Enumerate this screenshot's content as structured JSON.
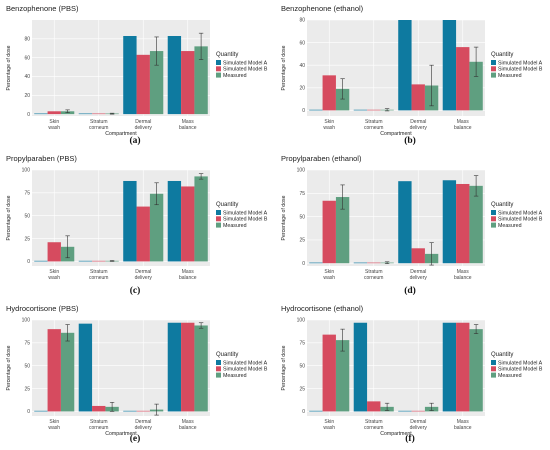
{
  "colors": {
    "model_a": "#0e7aa0",
    "model_b": "#d64b5f",
    "measured": "#5f9f80",
    "panel_bg": "#ebebeb",
    "grid": "#ffffff"
  },
  "chart_data": [
    {
      "panel": "(a)",
      "type": "bar",
      "title": "Benzophenone (PBS)",
      "xlabel": "Compartment",
      "ylabel": "Percentage of dose",
      "ylim": [
        -2,
        100
      ],
      "yticks": [
        0,
        20,
        40,
        60,
        80
      ],
      "categories": [
        "Skin\nwash",
        "Stratum\ncorneum",
        "Dermal\ndelivery",
        "Mass\nbalance"
      ],
      "legend_title": "Quantity",
      "legend": [
        "Simulated Model A",
        "Simulated Model B",
        "Measured"
      ],
      "series": [
        {
          "name": "Simulated Model A",
          "values": [
            0,
            0,
            83,
            83
          ]
        },
        {
          "name": "Simulated Model B",
          "values": [
            3,
            0,
            63,
            67
          ]
        },
        {
          "name": "Measured",
          "values": [
            3,
            0.5,
            67,
            72
          ],
          "error": [
            1.5,
            0.5,
            15,
            14
          ]
        }
      ]
    },
    {
      "panel": "(b)",
      "type": "bar",
      "title": "Benzophenone (ethanol)",
      "xlabel": "Compartment",
      "ylabel": "Percentage of dose",
      "ylim": [
        -5,
        80
      ],
      "yticks": [
        0,
        20,
        40,
        60,
        80
      ],
      "categories": [
        "Skin\nwash",
        "Stratum\ncorneum",
        "Dermal\ndelivery",
        "Mass\nbalance"
      ],
      "legend_title": "Quantity",
      "legend": [
        "Simulated Model A",
        "Simulated Model B",
        "Measured"
      ],
      "series": [
        {
          "name": "Simulated Model A",
          "values": [
            0,
            0,
            80,
            80
          ]
        },
        {
          "name": "Simulated Model B",
          "values": [
            31,
            0,
            23,
            56
          ]
        },
        {
          "name": "Measured",
          "values": [
            19,
            0.5,
            22,
            43
          ],
          "error": [
            9,
            1,
            18,
            13
          ]
        }
      ]
    },
    {
      "panel": "(c)",
      "type": "bar",
      "title": "Propylparaben (PBS)",
      "xlabel": "",
      "ylabel": "Percentage of dose",
      "ylim": [
        -5,
        100
      ],
      "yticks": [
        0,
        25,
        50,
        75,
        100
      ],
      "categories": [
        "Skin\nwash",
        "Stratum\ncorneum",
        "Dermal\ndelivery",
        "Mass\nbalance"
      ],
      "legend_title": "Quantity",
      "legend": [
        "Simulated Model A",
        "Simulated Model B",
        "Measured"
      ],
      "series": [
        {
          "name": "Simulated Model A",
          "values": [
            0,
            0,
            88,
            88
          ]
        },
        {
          "name": "Simulated Model B",
          "values": [
            21,
            0,
            60,
            82
          ]
        },
        {
          "name": "Measured",
          "values": [
            16,
            0.5,
            74,
            93
          ],
          "error": [
            12,
            0.5,
            12,
            3
          ]
        }
      ]
    },
    {
      "panel": "(d)",
      "type": "bar",
      "title": "Propylparaben (ethanol)",
      "xlabel": "",
      "ylabel": "Percentage of dose",
      "ylim": [
        -3,
        100
      ],
      "yticks": [
        0,
        25,
        50,
        75,
        100
      ],
      "categories": [
        "Skin\nwash",
        "Stratum\ncorneum",
        "Dermal\ndelivery",
        "Mass\nbalance"
      ],
      "legend_title": "Quantity",
      "legend": [
        "Simulated Model A",
        "Simulated Model B",
        "Measured"
      ],
      "series": [
        {
          "name": "Simulated Model A",
          "values": [
            0.5,
            0,
            88,
            89
          ]
        },
        {
          "name": "Simulated Model B",
          "values": [
            67,
            0,
            16,
            85
          ]
        },
        {
          "name": "Measured",
          "values": [
            71,
            0.5,
            10,
            83
          ],
          "error": [
            13,
            1,
            12,
            11
          ]
        }
      ]
    },
    {
      "panel": "(e)",
      "type": "bar",
      "title": "Hydrocortisone (PBS)",
      "xlabel": "Compartment",
      "ylabel": "Percentage of dose",
      "ylim": [
        -5,
        100
      ],
      "yticks": [
        0,
        25,
        50,
        75,
        100
      ],
      "categories": [
        "Skin\nwash",
        "Stratum\ncorneum",
        "Dermal\ndelivery",
        "Mass\nbalance"
      ],
      "legend_title": "Quantity",
      "legend": [
        "Simulated Model A",
        "Simulated Model B",
        "Measured"
      ],
      "series": [
        {
          "name": "Simulated Model A",
          "values": [
            0,
            96,
            0,
            97
          ]
        },
        {
          "name": "Simulated Model B",
          "values": [
            90,
            6,
            0,
            97
          ]
        },
        {
          "name": "Measured",
          "values": [
            86,
            5,
            2,
            94
          ],
          "error": [
            9,
            5,
            6,
            3
          ]
        }
      ]
    },
    {
      "panel": "(f)",
      "type": "bar",
      "title": "Hydrocortisone (ethanol)",
      "xlabel": "Compartment",
      "ylabel": "Percentage of dose",
      "ylim": [
        -5,
        100
      ],
      "yticks": [
        0,
        25,
        50,
        75,
        100
      ],
      "categories": [
        "Skin\nwash",
        "Stratum\ncorneum",
        "Dermal\ndelivery",
        "Mass\nbalance"
      ],
      "legend_title": "Quantity",
      "legend": [
        "Simulated Model A",
        "Simulated Model B",
        "Measured"
      ],
      "series": [
        {
          "name": "Simulated Model A",
          "values": [
            0,
            97,
            0.5,
            97
          ]
        },
        {
          "name": "Simulated Model B",
          "values": [
            84,
            11,
            0,
            97
          ]
        },
        {
          "name": "Measured",
          "values": [
            78,
            5,
            5,
            90
          ],
          "error": [
            12,
            4,
            4,
            5
          ]
        }
      ]
    }
  ]
}
